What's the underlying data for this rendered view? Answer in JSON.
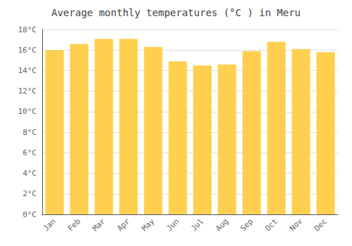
{
  "chart_data": {
    "type": "bar",
    "title": "Average monthly temperatures (°C ) in Meru",
    "categories": [
      "Jan",
      "Feb",
      "Mar",
      "Apr",
      "May",
      "Jun",
      "Jul",
      "Aug",
      "Sep",
      "Oct",
      "Nov",
      "Dec"
    ],
    "values": [
      16.0,
      16.6,
      17.1,
      17.1,
      16.3,
      14.9,
      14.5,
      14.6,
      15.9,
      16.8,
      16.1,
      15.8
    ],
    "color": "#FFD050",
    "ylim": [
      0,
      18
    ],
    "yticks": [
      {
        "value": 0,
        "label": "0°C"
      },
      {
        "value": 2,
        "label": "2°C"
      },
      {
        "value": 4,
        "label": "4°C"
      },
      {
        "value": 6,
        "label": "6°C"
      },
      {
        "value": 8,
        "label": "8°C"
      },
      {
        "value": 10,
        "label": "10°C"
      },
      {
        "value": 12,
        "label": "12°C"
      },
      {
        "value": 14,
        "label": "14°C"
      },
      {
        "value": 16,
        "label": "16°C"
      },
      {
        "value": 18,
        "label": "18°C"
      }
    ],
    "grid": true
  }
}
